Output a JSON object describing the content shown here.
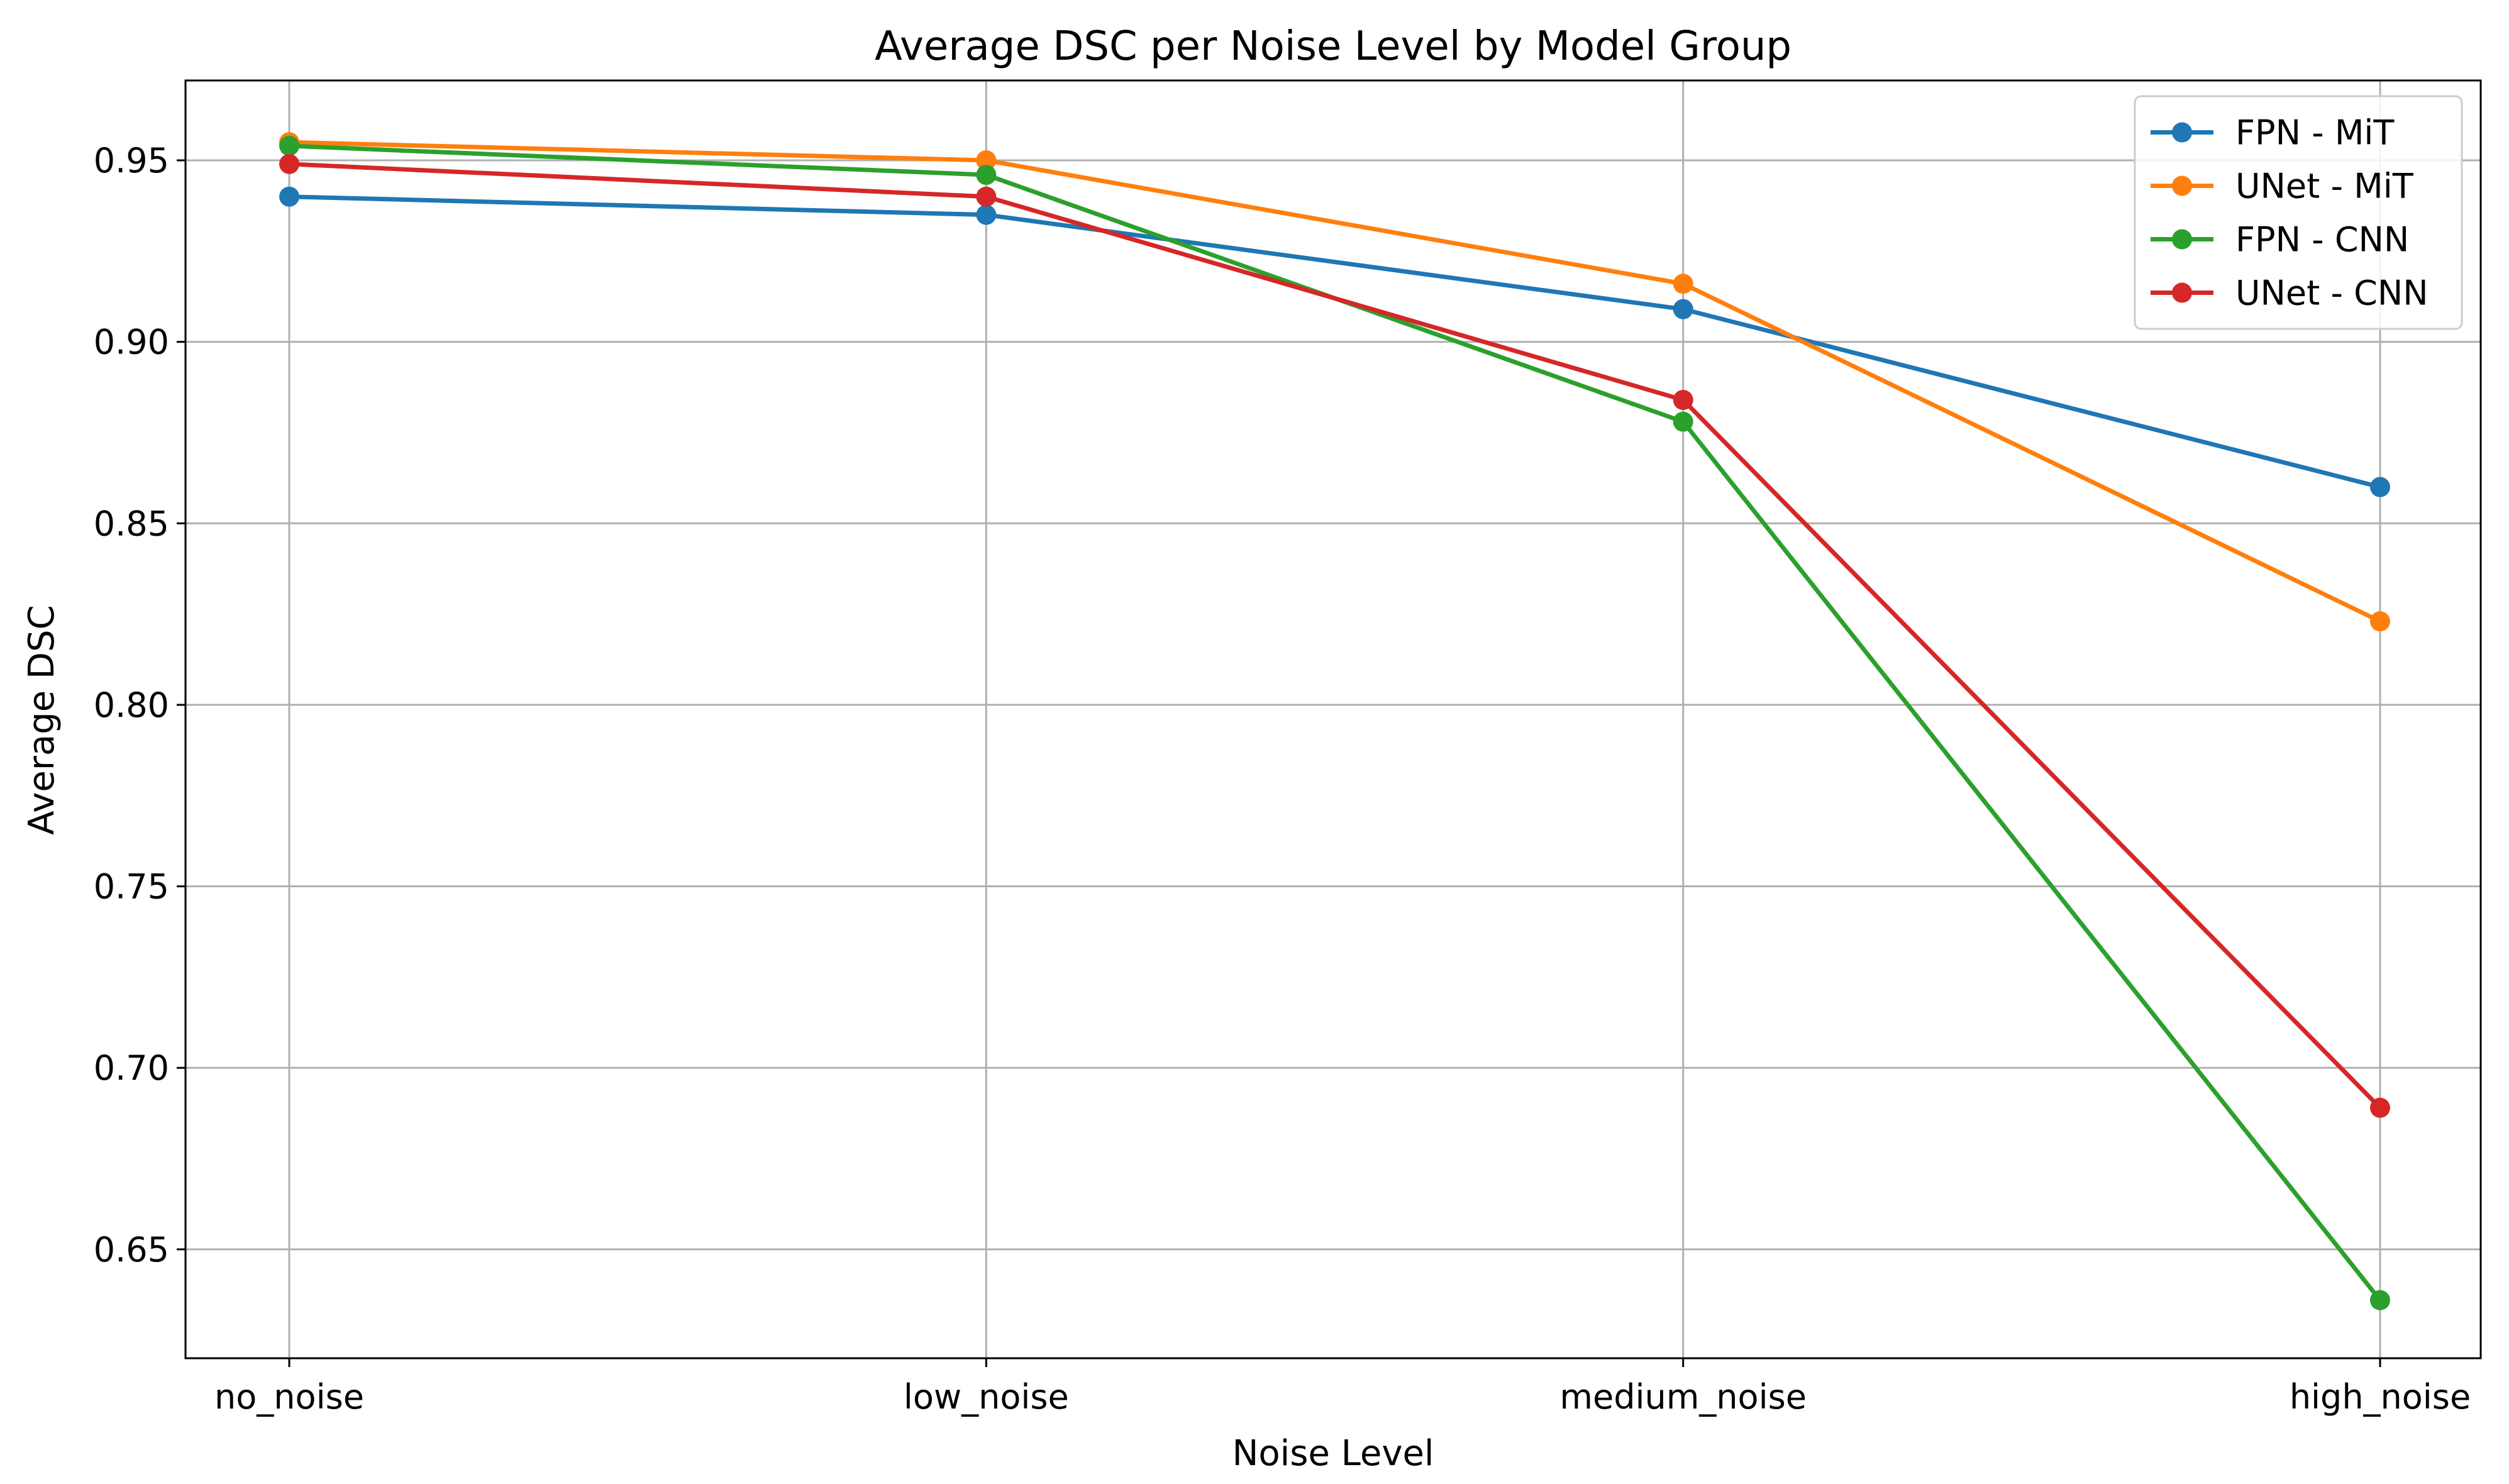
{
  "chart_data": {
    "type": "line",
    "title": "Average DSC per Noise Level by Model Group",
    "xlabel": "Noise Level",
    "ylabel": "Average DSC",
    "categories": [
      "no_noise",
      "low_noise",
      "medium_noise",
      "high_noise"
    ],
    "ylim": [
      0.62,
      0.972
    ],
    "yticks": [
      0.65,
      0.7,
      0.75,
      0.8,
      0.85,
      0.9,
      0.95
    ],
    "ytick_labels": [
      "0.65",
      "0.70",
      "0.75",
      "0.80",
      "0.85",
      "0.90",
      "0.95"
    ],
    "grid": true,
    "legend_position": "top-right",
    "series": [
      {
        "name": "FPN - MiT",
        "color": "#1f77b4",
        "values": [
          0.94,
          0.935,
          0.909,
          0.86
        ]
      },
      {
        "name": "UNet - MiT",
        "color": "#ff7f0e",
        "values": [
          0.955,
          0.95,
          0.916,
          0.823
        ]
      },
      {
        "name": "FPN - CNN",
        "color": "#2ca02c",
        "values": [
          0.954,
          0.946,
          0.878,
          0.636
        ]
      },
      {
        "name": "UNet - CNN",
        "color": "#d62728",
        "values": [
          0.949,
          0.94,
          0.884,
          0.689
        ]
      }
    ]
  }
}
